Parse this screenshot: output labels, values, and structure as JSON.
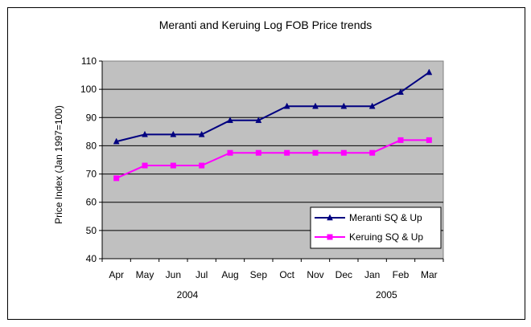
{
  "chart_data": {
    "type": "line",
    "title": "Meranti and Keruing Log FOB Price trends",
    "ylabel": "Price Index (Jan 1997=100)",
    "xlabel": "",
    "categories": [
      "Apr",
      "May",
      "Jun",
      "Jul",
      "Aug",
      "Sep",
      "Oct",
      "Nov",
      "Dec",
      "Jan",
      "Feb",
      "Mar"
    ],
    "year_labels": [
      {
        "label": "2004",
        "after_category": "Jun"
      },
      {
        "label": "2005",
        "after_category": "Jan"
      }
    ],
    "yticks": [
      40,
      50,
      60,
      70,
      80,
      90,
      100,
      110
    ],
    "ylim": [
      40,
      110
    ],
    "grid": true,
    "legend_position": "bottom-right",
    "series": [
      {
        "name": "Meranti SQ & Up",
        "color": "#000080",
        "marker": "triangle",
        "values": [
          81.5,
          84,
          84,
          84,
          89,
          89,
          94,
          94,
          94,
          94,
          99,
          106
        ]
      },
      {
        "name": "Keruing SQ & Up",
        "color": "#FF00FF",
        "marker": "square",
        "values": [
          68.5,
          73,
          73,
          73,
          77.5,
          77.5,
          77.5,
          77.5,
          77.5,
          77.5,
          82,
          82
        ]
      }
    ]
  }
}
